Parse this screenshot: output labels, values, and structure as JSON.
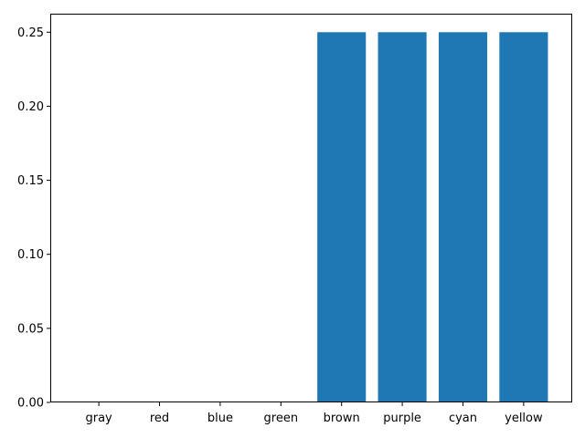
{
  "chart_data": {
    "type": "bar",
    "title": "",
    "xlabel": "",
    "ylabel": "",
    "categories": [
      "gray",
      "red",
      "blue",
      "green",
      "brown",
      "purple",
      "cyan",
      "yellow"
    ],
    "values": [
      0,
      0,
      0,
      0,
      0.25,
      0.25,
      0.25,
      0.25
    ],
    "ylim": [
      0,
      0.2625
    ],
    "yticks": [
      0.0,
      0.05,
      0.1,
      0.15,
      0.2,
      0.25
    ],
    "ytick_labels": [
      "0.00",
      "0.05",
      "0.10",
      "0.15",
      "0.20",
      "0.25"
    ],
    "bar_color": "#1f77b4",
    "grid": false,
    "legend": "none"
  }
}
